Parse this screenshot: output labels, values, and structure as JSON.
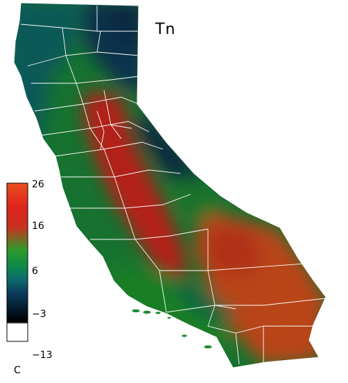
{
  "title": "Tn",
  "colorbar": {
    "ticks": [
      "26",
      "16",
      "6",
      "−3",
      "−13"
    ],
    "unit": "C",
    "stops": [
      "#e8501c",
      "#e0221c",
      "#c8321e",
      "#2e9a2a",
      "#0f8a46",
      "#0e6e6e",
      "#0b3a5a",
      "#02121e",
      "#000000",
      "#ffffff"
    ]
  },
  "colors": {
    "hot": "#de2a1a",
    "warm": "#e05a1a",
    "mid": "#1e9630",
    "cool": "#0f7e66",
    "cold": "#0c4a66",
    "border": "#ffffff"
  }
}
